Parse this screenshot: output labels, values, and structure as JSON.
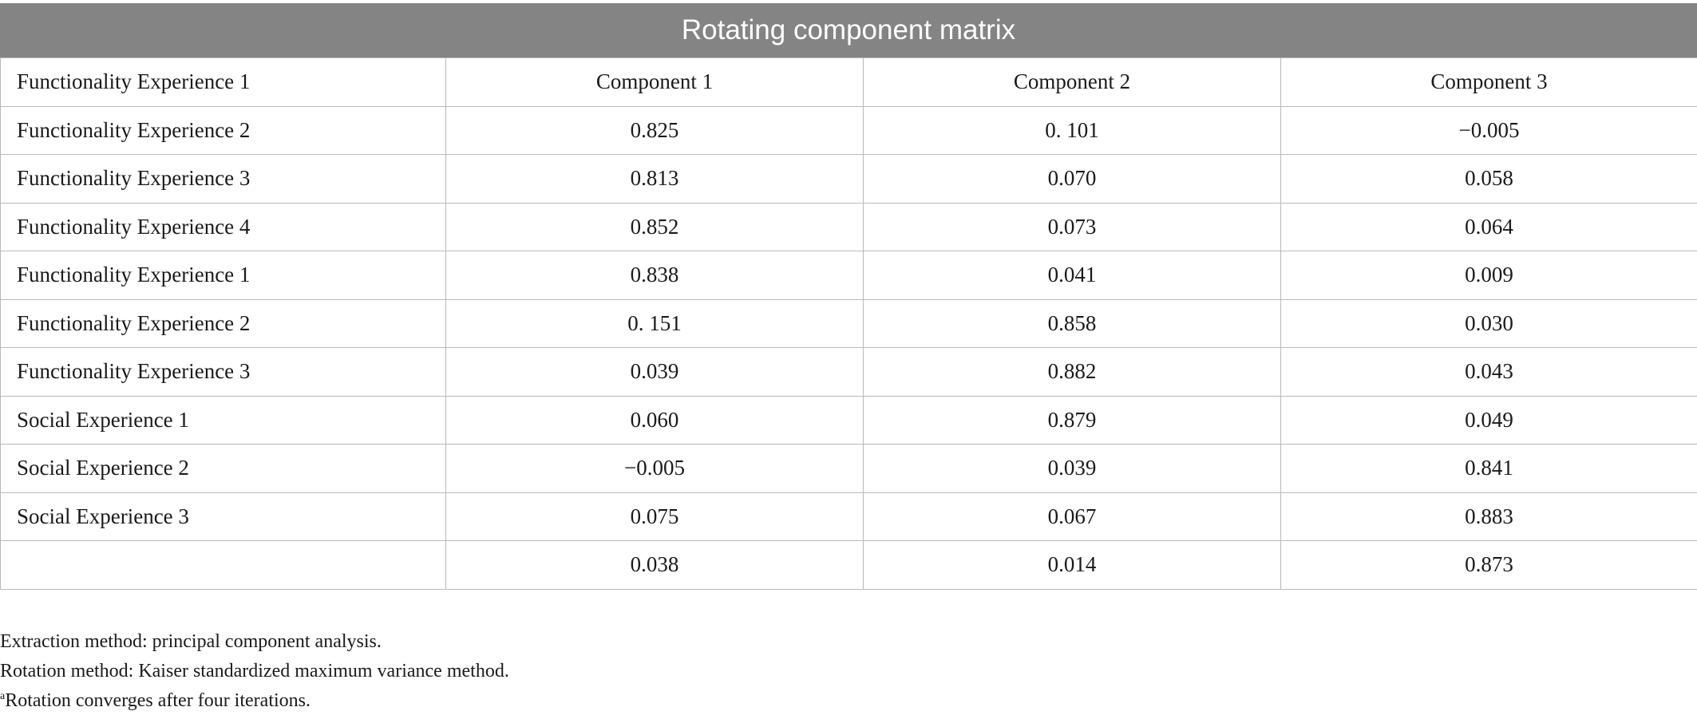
{
  "table": {
    "title": "Rotating component matrix",
    "rows": [
      [
        "Functionality Experience 1",
        "Component 1",
        "Component 2",
        "Component 3"
      ],
      [
        "Functionality Experience 2",
        "0.825",
        "0. 101",
        "−0.005"
      ],
      [
        "Functionality Experience 3",
        "0.813",
        "0.070",
        "0.058"
      ],
      [
        "Functionality Experience 4",
        "0.852",
        "0.073",
        "0.064"
      ],
      [
        "Functionality Experience 1",
        "0.838",
        "0.041",
        "0.009"
      ],
      [
        "Functionality Experience 2",
        "0. 151",
        "0.858",
        "0.030"
      ],
      [
        "Functionality Experience 3",
        "0.039",
        "0.882",
        "0.043"
      ],
      [
        "Social Experience 1",
        "0.060",
        "0.879",
        "0.049"
      ],
      [
        "Social Experience 2",
        "−0.005",
        "0.039",
        "0.841"
      ],
      [
        "Social Experience 3",
        "0.075",
        "0.067",
        "0.883"
      ],
      [
        "",
        "0.038",
        "0.014",
        "0.873"
      ]
    ]
  },
  "footnotes": {
    "extraction": "Extraction method: principal component analysis.",
    "rotation": "Rotation method: Kaiser standardized maximum variance method.",
    "convergence_mark": "a",
    "convergence": "Rotation converges after four iterations."
  }
}
